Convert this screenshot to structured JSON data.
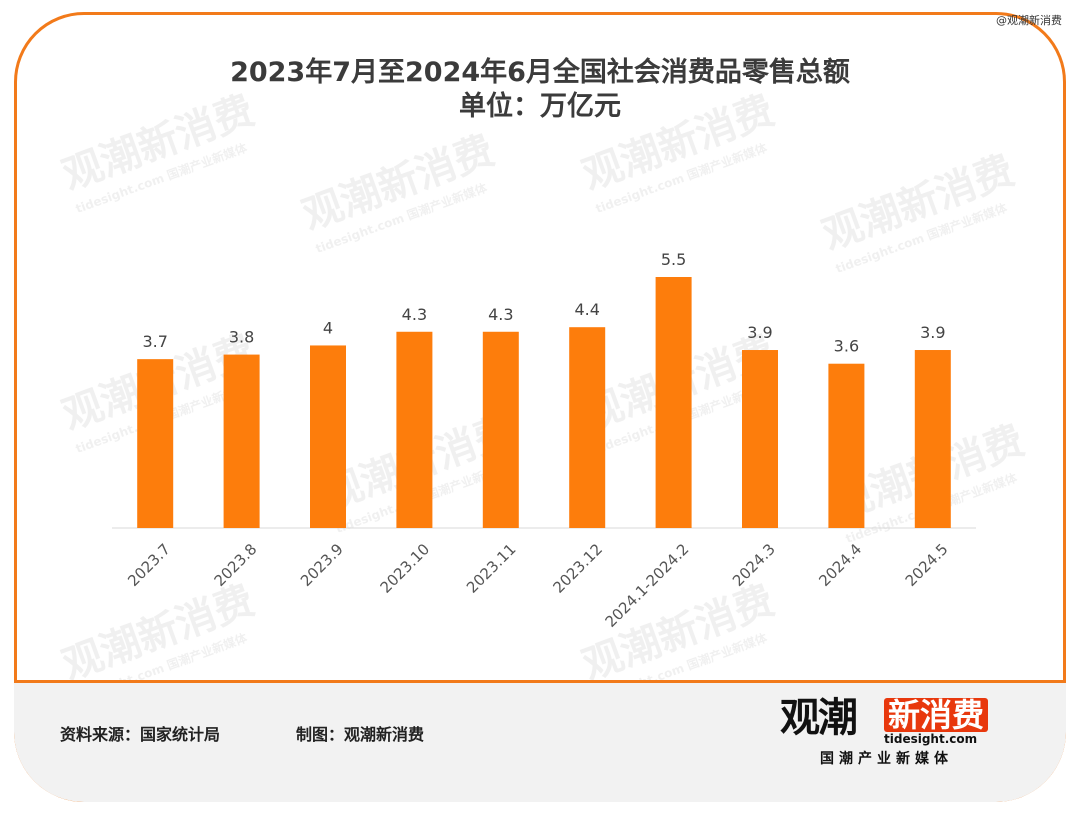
{
  "corner_credit": "@观潮新消费",
  "chart_data": {
    "type": "bar",
    "title": "2023年7月至2024年6月全国社会消费品零售总额",
    "subtitle": "单位：万亿元",
    "categories": [
      "2023.7",
      "2023.8",
      "2023.9",
      "2023.10",
      "2023.11",
      "2023.12",
      "2024.1-2024.2",
      "2024.3",
      "2024.4",
      "2024.5"
    ],
    "values": [
      3.7,
      3.8,
      4,
      4.3,
      4.3,
      4.4,
      5.5,
      3.9,
      3.6,
      3.9
    ],
    "value_labels": [
      "3.7",
      "3.8",
      "4",
      "4.3",
      "4.3",
      "4.4",
      "5.5",
      "3.9",
      "3.6",
      "3.9"
    ],
    "ylim": [
      0,
      5.5
    ],
    "grid": false,
    "bar_color": "#fd7d0c"
  },
  "footer": {
    "source": "资料来源：国家统计局",
    "made_by": "制图：观潮新消费"
  },
  "logo": {
    "main": "观潮",
    "boxed": "新消费",
    "domain": "tidesight.com",
    "slogan": "国潮产业新媒体"
  },
  "colors": {
    "frame": "#f27a1a",
    "footer_bg": "#f2f2f2",
    "logo_red": "#e8380d"
  }
}
